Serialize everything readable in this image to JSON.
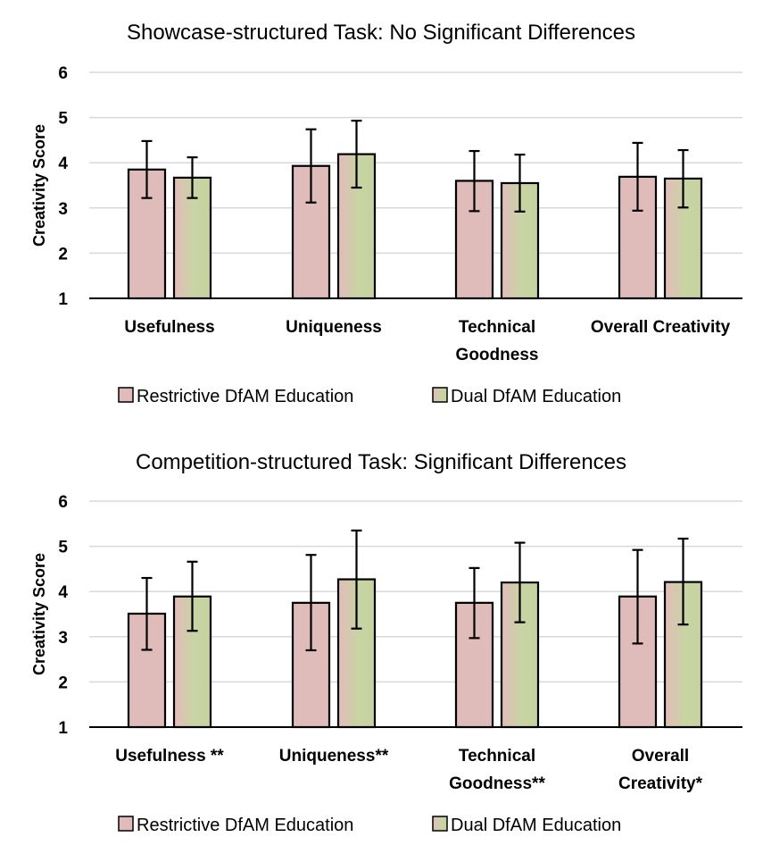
{
  "chart_data": [
    {
      "type": "bar",
      "title": "Showcase-structured Task: No Significant Differences",
      "ylabel": "Creativity Score",
      "xlabel": "",
      "ylim": [
        1,
        6
      ],
      "yticks": [
        1,
        2,
        3,
        4,
        5,
        6
      ],
      "grid": true,
      "legend_position": "bottom",
      "categories": [
        [
          "Usefulness"
        ],
        [
          "Uniqueness"
        ],
        [
          "Technical",
          "Goodness"
        ],
        [
          "Overall Creativity"
        ]
      ],
      "series": [
        {
          "name": "Restrictive DfAM Education",
          "color": "#dfbcba",
          "values": [
            3.85,
            3.93,
            3.6,
            3.69
          ],
          "error_low": [
            3.22,
            3.12,
            2.93,
            2.94
          ],
          "error_high": [
            4.48,
            4.74,
            4.26,
            4.44
          ]
        },
        {
          "name": "Dual DfAM Education",
          "color": "#c8d4a3",
          "values": [
            3.67,
            4.19,
            3.55,
            3.65
          ],
          "error_low": [
            3.22,
            3.45,
            2.92,
            3.01
          ],
          "error_high": [
            4.12,
            4.93,
            4.18,
            4.28
          ]
        }
      ]
    },
    {
      "type": "bar",
      "title": "Competition-structured Task: Significant Differences",
      "ylabel": "Creativity Score",
      "xlabel": "",
      "ylim": [
        1,
        6
      ],
      "yticks": [
        1,
        2,
        3,
        4,
        5,
        6
      ],
      "grid": true,
      "legend_position": "bottom",
      "categories": [
        [
          "Usefulness **"
        ],
        [
          "Uniqueness**"
        ],
        [
          "Technical",
          "Goodness**"
        ],
        [
          "Overall",
          "Creativity*"
        ]
      ],
      "series": [
        {
          "name": "Restrictive DfAM Education",
          "color": "#dfbcba",
          "values": [
            3.51,
            3.75,
            3.75,
            3.89
          ],
          "error_low": [
            2.71,
            2.7,
            2.97,
            2.85
          ],
          "error_high": [
            4.3,
            4.81,
            4.52,
            4.92
          ]
        },
        {
          "name": "Dual DfAM Education",
          "color": "#c8d4a3",
          "values": [
            3.89,
            4.27,
            4.2,
            4.21
          ],
          "error_low": [
            3.13,
            3.18,
            3.32,
            3.27
          ],
          "error_high": [
            4.66,
            5.35,
            5.08,
            5.17
          ]
        }
      ]
    }
  ]
}
